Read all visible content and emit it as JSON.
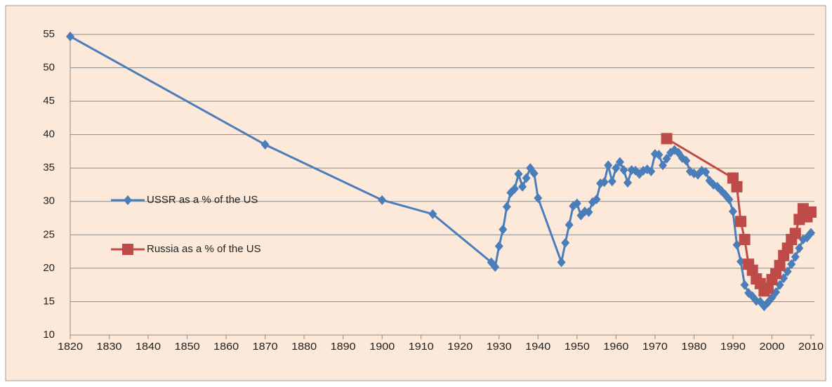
{
  "chart_data": {
    "type": "line",
    "xlim": [
      1820,
      2010
    ],
    "xticks": [
      1820,
      1830,
      1840,
      1850,
      1860,
      1870,
      1880,
      1890,
      1900,
      1910,
      1920,
      1930,
      1940,
      1950,
      1960,
      1970,
      1980,
      1990,
      2000,
      2010
    ],
    "ylim": [
      10,
      55
    ],
    "yticks": [
      10,
      15,
      20,
      25,
      30,
      35,
      40,
      45,
      50,
      55
    ],
    "grid": true,
    "legend": "left",
    "series": [
      {
        "name": "USSR as a % of the US",
        "color": "#4a7ebb",
        "marker": "diamond",
        "x": [
          1820,
          1870,
          1900,
          1913,
          1928,
          1929,
          1930,
          1931,
          1932,
          1933,
          1934,
          1935,
          1936,
          1937,
          1938,
          1939,
          1940,
          1946,
          1947,
          1948,
          1949,
          1950,
          1951,
          1952,
          1953,
          1954,
          1955,
          1956,
          1957,
          1958,
          1959,
          1960,
          1961,
          1962,
          1963,
          1964,
          1965,
          1966,
          1967,
          1968,
          1969,
          1970,
          1971,
          1972,
          1973,
          1974,
          1975,
          1976,
          1977,
          1978,
          1979,
          1980,
          1981,
          1982,
          1983,
          1984,
          1985,
          1986,
          1987,
          1988,
          1989,
          1990,
          1991,
          1992,
          1993,
          1994,
          1995,
          1996,
          1997,
          1998,
          1999,
          2000,
          2001,
          2002,
          2003,
          2004,
          2005,
          2006,
          2007,
          2008,
          2009,
          2010
        ],
        "values": [
          54.7,
          38.5,
          30.2,
          28.1,
          20.9,
          20.2,
          23.3,
          25.8,
          29.2,
          31.3,
          31.9,
          34.1,
          32.2,
          33.5,
          35.0,
          34.2,
          30.5,
          20.9,
          23.8,
          26.5,
          29.3,
          29.7,
          27.9,
          28.5,
          28.4,
          29.9,
          30.3,
          32.7,
          32.9,
          35.4,
          33.0,
          35.0,
          35.9,
          34.7,
          32.8,
          34.7,
          34.6,
          34.1,
          34.6,
          34.8,
          34.5,
          37.1,
          37.0,
          35.4,
          36.4,
          37.3,
          37.7,
          37.3,
          36.5,
          36.1,
          34.5,
          34.2,
          34.0,
          34.6,
          34.4,
          33.1,
          32.5,
          32.2,
          31.6,
          31.0,
          30.3,
          28.5,
          23.5,
          21.0,
          17.5,
          16.3,
          15.8,
          15.1,
          15.0,
          14.3,
          14.9,
          15.6,
          16.4,
          17.5,
          18.5,
          19.5,
          20.6,
          21.7,
          23.0,
          24.3,
          24.6,
          25.3
        ]
      },
      {
        "name": "Russia as a % of the US",
        "color": "#be4b48",
        "marker": "square",
        "x": [
          1973,
          1990,
          1991,
          1992,
          1993,
          1994,
          1995,
          1996,
          1997,
          1998,
          1999,
          2000,
          2001,
          2002,
          2003,
          2004,
          2005,
          2006,
          2007,
          2008,
          2009,
          2010
        ],
        "values": [
          39.4,
          33.5,
          32.2,
          27.0,
          24.3,
          20.6,
          19.7,
          18.4,
          17.7,
          16.6,
          17.0,
          18.3,
          19.2,
          20.4,
          21.9,
          23.0,
          24.3,
          25.2,
          27.3,
          28.9,
          27.7,
          28.4
        ]
      }
    ]
  }
}
